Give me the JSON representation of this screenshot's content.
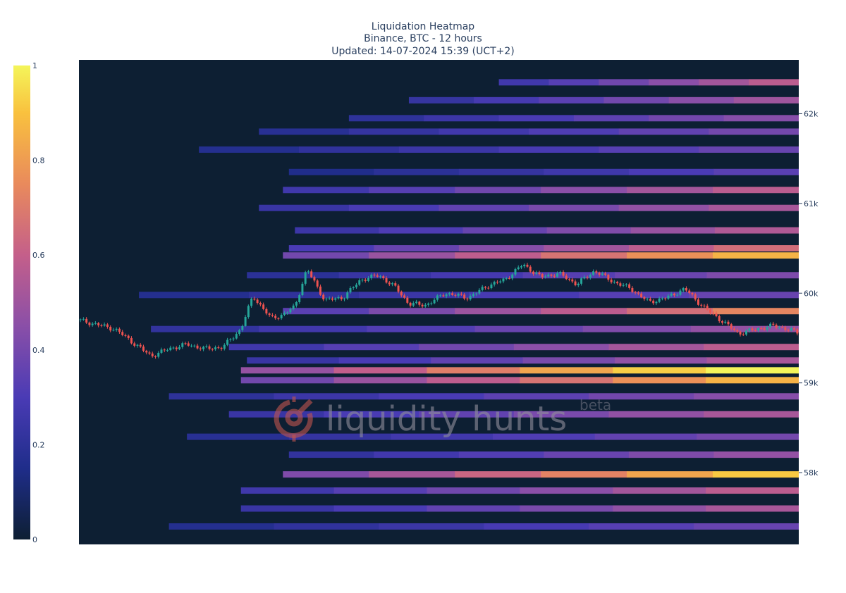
{
  "chart_data": {
    "type": "heatmap",
    "title": "Liquidation Heatmap",
    "subtitle": "Binance, BTC - 12 hours",
    "updated": "Updated: 14-07-2024 15:39 (UCT+2)",
    "y_axis": {
      "side": "right",
      "ticks": [
        {
          "value": 58000,
          "label": "58k"
        },
        {
          "value": 59000,
          "label": "59k"
        },
        {
          "value": 60000,
          "label": "60k"
        },
        {
          "value": 61000,
          "label": "61k"
        },
        {
          "value": 62000,
          "label": "62k"
        }
      ],
      "range": [
        57200,
        62600
      ]
    },
    "x_axis": {
      "range": [
        0,
        12
      ],
      "shown": false
    },
    "colorbar": {
      "side": "left",
      "range": [
        0,
        1
      ],
      "ticks": [
        {
          "value": 0,
          "label": "0"
        },
        {
          "value": 0.2,
          "label": "0.2"
        },
        {
          "value": 0.4,
          "label": "0.4"
        },
        {
          "value": 0.6,
          "label": "0.6"
        },
        {
          "value": 0.8,
          "label": "0.8"
        },
        {
          "value": 1,
          "label": "1"
        }
      ],
      "colorscale": [
        "#0d1f33",
        "#1f2d8a",
        "#4a3bb5",
        "#8a4fa8",
        "#c45f8a",
        "#e98a5c",
        "#f9c13e",
        "#f4f55a"
      ]
    },
    "levels": [
      {
        "price": 62350,
        "start_hour": 7.0,
        "value": 0.55
      },
      {
        "price": 62150,
        "start_hour": 5.5,
        "value": 0.48
      },
      {
        "price": 61950,
        "start_hour": 4.5,
        "value": 0.42
      },
      {
        "price": 61800,
        "start_hour": 3.0,
        "value": 0.38
      },
      {
        "price": 61600,
        "start_hour": 2.0,
        "value": 0.35
      },
      {
        "price": 61350,
        "start_hour": 3.5,
        "value": 0.32
      },
      {
        "price": 61150,
        "start_hour": 3.4,
        "value": 0.55
      },
      {
        "price": 60950,
        "start_hour": 3.0,
        "value": 0.5
      },
      {
        "price": 60700,
        "start_hour": 3.6,
        "value": 0.52
      },
      {
        "price": 60500,
        "start_hour": 3.5,
        "value": 0.62
      },
      {
        "price": 60420,
        "start_hour": 3.4,
        "value": 0.82
      },
      {
        "price": 60200,
        "start_hour": 2.8,
        "value": 0.4
      },
      {
        "price": 59980,
        "start_hour": 1.0,
        "value": 0.35
      },
      {
        "price": 59800,
        "start_hour": 3.4,
        "value": 0.7
      },
      {
        "price": 59600,
        "start_hour": 1.2,
        "value": 0.45
      },
      {
        "price": 59400,
        "start_hour": 2.5,
        "value": 0.55
      },
      {
        "price": 59250,
        "start_hour": 2.8,
        "value": 0.5
      },
      {
        "price": 59140,
        "start_hour": 2.7,
        "value": 1.0
      },
      {
        "price": 59030,
        "start_hour": 2.7,
        "value": 0.82
      },
      {
        "price": 58850,
        "start_hour": 1.5,
        "value": 0.42
      },
      {
        "price": 58650,
        "start_hour": 2.5,
        "value": 0.5
      },
      {
        "price": 58400,
        "start_hour": 1.8,
        "value": 0.38
      },
      {
        "price": 58200,
        "start_hour": 3.5,
        "value": 0.45
      },
      {
        "price": 57980,
        "start_hour": 3.4,
        "value": 0.88
      },
      {
        "price": 57800,
        "start_hour": 2.7,
        "value": 0.55
      },
      {
        "price": 57600,
        "start_hour": 2.7,
        "value": 0.5
      },
      {
        "price": 57400,
        "start_hour": 1.5,
        "value": 0.35
      }
    ],
    "price_path": {
      "hours": [
        0,
        0.3,
        0.6,
        0.9,
        1.2,
        1.5,
        1.8,
        2.1,
        2.4,
        2.7,
        2.9,
        3.2,
        3.4,
        3.6,
        3.8,
        4.1,
        4.4,
        4.7,
        5.0,
        5.3,
        5.5,
        5.8,
        6.1,
        6.5,
        6.8,
        7.1,
        7.4,
        7.7,
        8.0,
        8.3,
        8.6,
        8.9,
        9.2,
        9.5,
        9.8,
        10.1,
        10.4,
        10.7,
        11.0,
        11.3,
        11.6,
        12.0
      ],
      "prices": [
        59700,
        59650,
        59600,
        59450,
        59300,
        59380,
        59430,
        59380,
        59400,
        59600,
        59970,
        59720,
        59760,
        59850,
        60270,
        59920,
        59950,
        60150,
        60200,
        60050,
        59880,
        59870,
        60000,
        59950,
        60080,
        60150,
        60320,
        60180,
        60220,
        60100,
        60250,
        60130,
        60050,
        59900,
        59950,
        60050,
        59850,
        59700,
        59550,
        59600,
        59640,
        59560
      ]
    }
  },
  "watermark": {
    "brand": "liquidity hunts",
    "tag": "beta",
    "icon": "crosshair-logo-icon"
  },
  "colors": {
    "background": "#ffffff",
    "plot_background": "#0d1f33",
    "candle_up": "#26a69a",
    "candle_down": "#ef5350",
    "text": "#2a3f5f"
  }
}
